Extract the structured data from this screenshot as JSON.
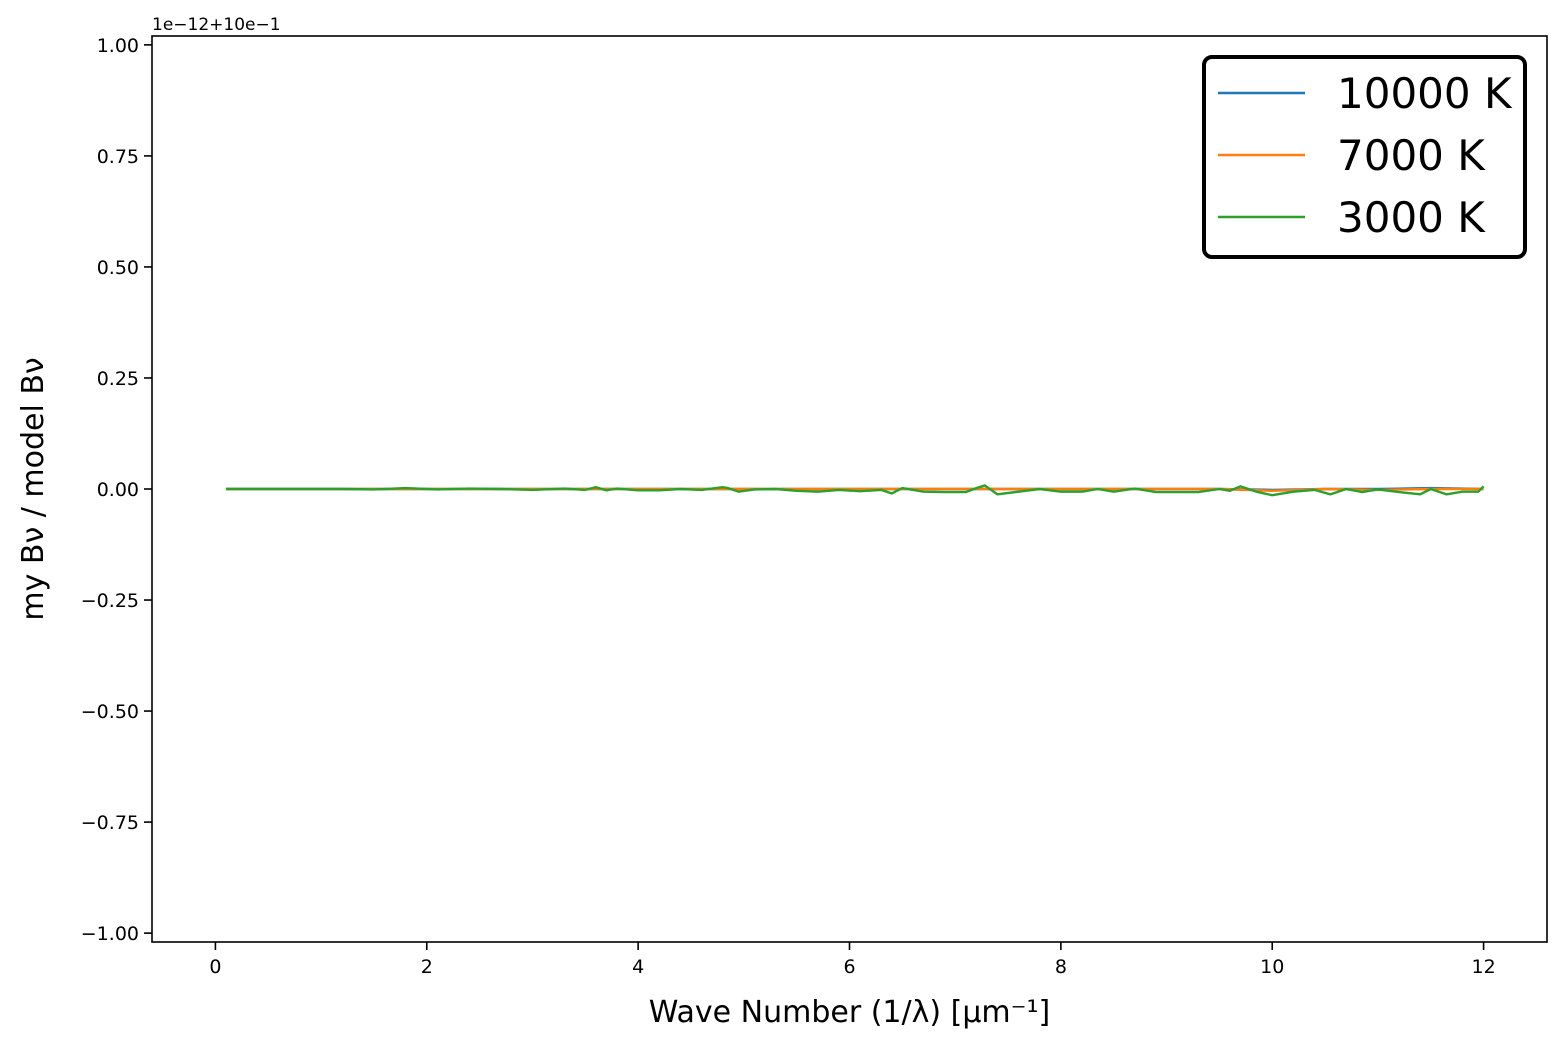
{
  "chart_data": {
    "type": "line",
    "title": "",
    "xlabel": "Wave Number (1/λ) [μm⁻¹]",
    "ylabel": "my Bν / model Bν",
    "y_offset_label": "1e−12+10e−1",
    "xlim": [
      -0.6,
      12.6
    ],
    "ylim": [
      -1.02,
      1.02
    ],
    "x_ticks": [
      0,
      2,
      4,
      6,
      8,
      10,
      12
    ],
    "x_tick_labels": [
      "0",
      "2",
      "4",
      "6",
      "8",
      "10",
      "12"
    ],
    "y_ticks": [
      1.0,
      0.75,
      0.5,
      0.25,
      0.0,
      -0.25,
      -0.5,
      -0.75,
      -1.0
    ],
    "y_tick_labels": [
      "1.00",
      "0.75",
      "0.50",
      "0.25",
      "0.00",
      "−0.25",
      "−0.50",
      "−0.75",
      "−1.00"
    ],
    "grid": false,
    "legend_position": "top-right",
    "series": [
      {
        "name": "10000 K",
        "color": "#1f77b4",
        "x": [
          0.1,
          0.5,
          1.0,
          1.5,
          2.0,
          2.5,
          3.0,
          3.5,
          4.0,
          4.5,
          5.0,
          5.5,
          6.0,
          6.5,
          7.0,
          7.5,
          8.0,
          8.5,
          9.0,
          9.5,
          10.0,
          10.5,
          11.0,
          11.5,
          12.0
        ],
        "values": [
          0.0,
          0.0,
          0.0,
          0.0,
          0.0,
          0.0,
          0.0,
          0.0,
          0.0,
          0.0,
          0.0,
          0.0,
          0.0,
          0.0,
          0.0,
          0.0,
          0.0,
          0.0,
          0.0,
          0.0,
          -0.002,
          0.0,
          0.0,
          0.002,
          0.0
        ]
      },
      {
        "name": "7000 K",
        "color": "#ff7f0e",
        "x": [
          0.1,
          0.5,
          1.0,
          1.5,
          2.0,
          2.5,
          3.0,
          3.5,
          4.0,
          4.5,
          5.0,
          5.5,
          6.0,
          6.5,
          7.0,
          7.5,
          8.0,
          8.5,
          9.0,
          9.5,
          10.0,
          10.5,
          11.0,
          11.5,
          12.0
        ],
        "values": [
          0.0,
          0.0,
          0.0,
          0.0,
          0.0,
          0.0,
          0.0,
          0.0,
          0.0,
          0.0,
          0.0,
          0.0,
          0.0,
          0.0,
          0.0,
          0.0,
          0.0,
          0.0,
          0.0,
          0.0,
          -0.004,
          0.0,
          -0.002,
          0.0,
          0.0
        ]
      },
      {
        "name": "3000 K",
        "color": "#2ca02c",
        "x": [
          0.1,
          0.3,
          0.6,
          0.9,
          1.2,
          1.5,
          1.8,
          2.1,
          2.4,
          2.7,
          3.0,
          3.3,
          3.5,
          3.6,
          3.7,
          3.8,
          4.0,
          4.2,
          4.4,
          4.6,
          4.8,
          4.85,
          4.95,
          5.1,
          5.3,
          5.5,
          5.7,
          5.9,
          6.1,
          6.3,
          6.4,
          6.5,
          6.7,
          6.9,
          7.1,
          7.2,
          7.28,
          7.4,
          7.6,
          7.8,
          8.0,
          8.2,
          8.35,
          8.5,
          8.7,
          8.9,
          9.1,
          9.3,
          9.5,
          9.6,
          9.7,
          9.85,
          10.0,
          10.2,
          10.4,
          10.55,
          10.7,
          10.85,
          11.0,
          11.2,
          11.4,
          11.5,
          11.65,
          11.8,
          11.95,
          12.0
        ],
        "values": [
          0.0,
          0.0,
          0.0,
          0.0,
          0.0,
          -0.001,
          0.002,
          -0.001,
          0.001,
          0.0,
          -0.002,
          0.001,
          -0.002,
          0.004,
          -0.003,
          0.001,
          -0.003,
          -0.003,
          0.0,
          -0.002,
          0.004,
          0.002,
          -0.006,
          -0.001,
          0.0,
          -0.004,
          -0.006,
          -0.002,
          -0.005,
          -0.002,
          -0.01,
          0.002,
          -0.006,
          -0.007,
          -0.007,
          0.002,
          0.008,
          -0.012,
          -0.006,
          0.0,
          -0.006,
          -0.006,
          0.0,
          -0.006,
          0.001,
          -0.007,
          -0.007,
          -0.007,
          0.0,
          -0.004,
          0.006,
          -0.006,
          -0.014,
          -0.006,
          -0.002,
          -0.012,
          0.0,
          -0.007,
          -0.001,
          -0.007,
          -0.012,
          0.0,
          -0.012,
          -0.006,
          -0.006,
          0.006
        ]
      }
    ]
  }
}
